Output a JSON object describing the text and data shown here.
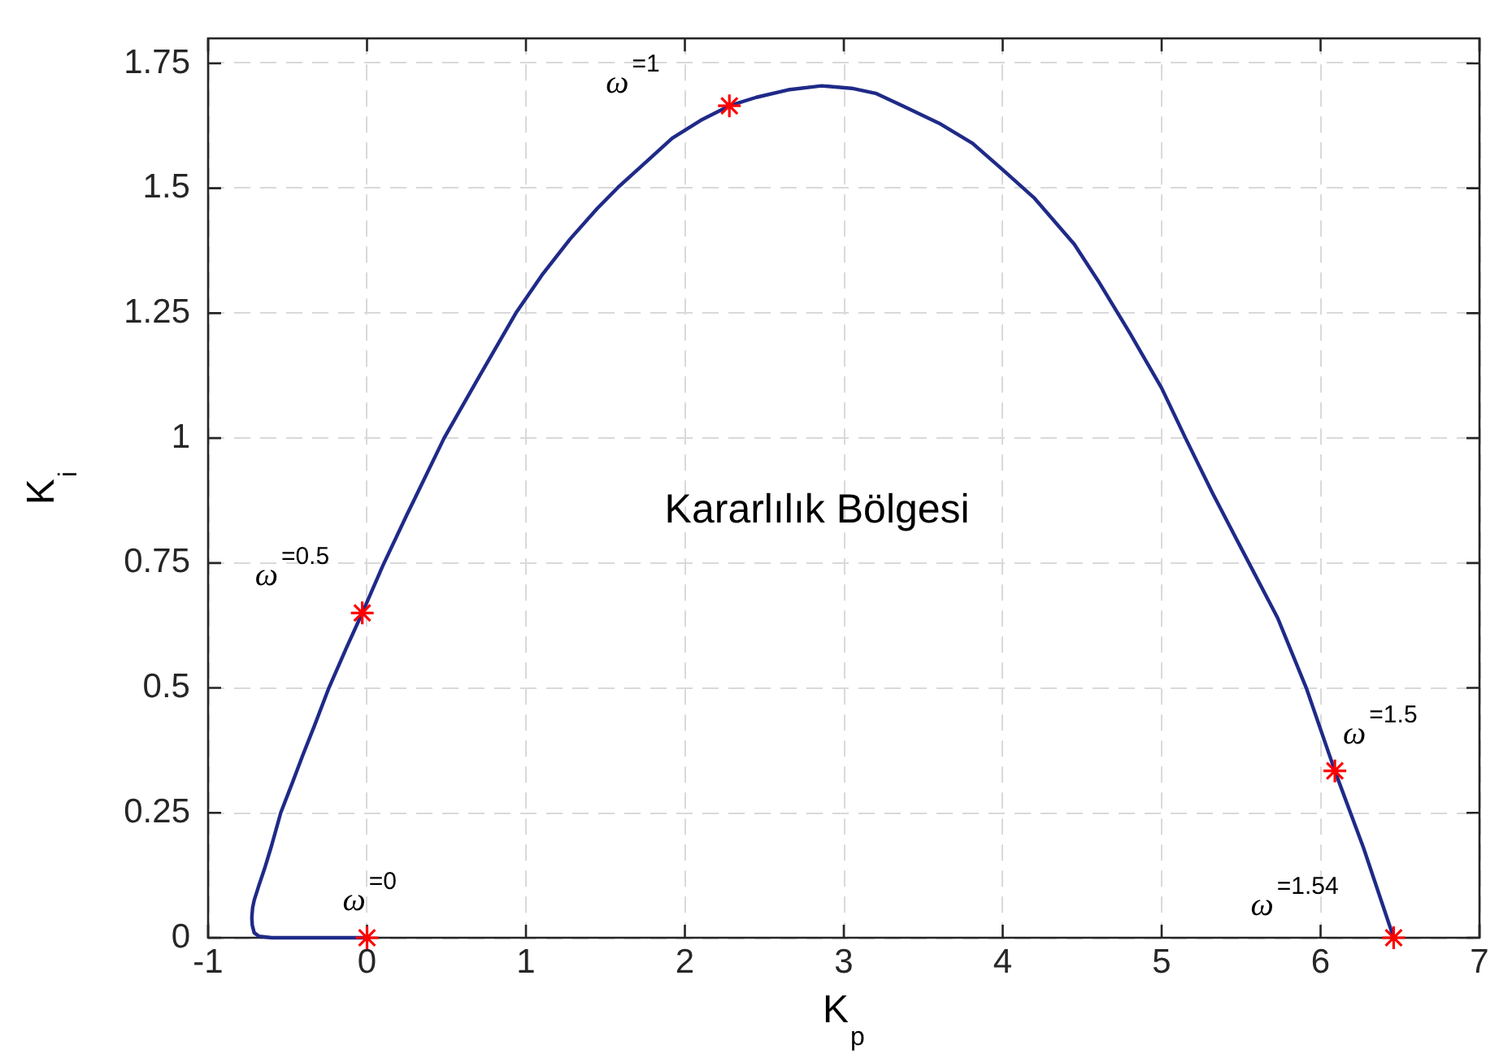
{
  "chart_data": {
    "type": "line",
    "xlabel": "K$_{p}$",
    "ylabel": "K$_{i}$",
    "annotations": [
      "Kararlılık Bölgesi",
      {
        "text": "ω$^{=0}$",
        "x": 0,
        "y": 0
      },
      {
        "text": "ω$^{=0.5}$",
        "x": -0.03,
        "y": 0.65
      },
      {
        "text": "ω$^{=1}$",
        "x": 2.28,
        "y": 1.665
      },
      {
        "text": "ω$^{=1.5}$",
        "x": 6.09,
        "y": 0.334
      },
      {
        "text": "ω$^{=1.54}$",
        "x": 6.46,
        "y": 0
      }
    ],
    "series": [
      {
        "type": "line",
        "color": "#1f2a88",
        "marker": "none",
        "x": [
          0,
          -0.3,
          -0.6,
          -0.68,
          -0.71,
          -0.722,
          -0.725,
          -0.72,
          -0.71,
          -0.68,
          -0.644,
          -0.6,
          -0.543,
          -0.47,
          -0.407,
          -0.33,
          -0.24,
          -0.13,
          -0.03,
          0.1,
          0.25,
          0.485,
          0.7,
          0.94,
          1.1,
          1.277,
          1.45,
          1.58,
          1.75,
          1.92,
          2.1,
          2.28,
          2.45,
          2.65,
          2.86,
          3.05,
          3.2,
          3.37,
          3.6,
          3.81,
          4.0,
          4.2,
          4.45,
          4.6,
          4.8,
          5.0,
          5.15,
          5.32,
          5.5,
          5.73,
          5.91,
          6.09,
          6.27,
          6.46
        ],
        "values": [
          0,
          0,
          0,
          0.003,
          0.01,
          0.025,
          0.04,
          0.06,
          0.075,
          0.105,
          0.139,
          0.185,
          0.25,
          0.31,
          0.363,
          0.425,
          0.5,
          0.58,
          0.65,
          0.745,
          0.846,
          1.0,
          1.12,
          1.252,
          1.326,
          1.398,
          1.46,
          1.502,
          1.551,
          1.6,
          1.636,
          1.665,
          1.682,
          1.697,
          1.705,
          1.7,
          1.69,
          1.665,
          1.63,
          1.59,
          1.537,
          1.48,
          1.388,
          1.315,
          1.21,
          1.1,
          1.0,
          0.89,
          0.78,
          0.64,
          0.5,
          0.334,
          0.18,
          0
        ]
      },
      {
        "type": "scatter",
        "color": "#ff0000",
        "marker": "cross",
        "x": [
          0,
          -0.03,
          2.28,
          6.09,
          6.46
        ],
        "values": [
          0,
          0.65,
          1.665,
          0.334,
          0
        ]
      }
    ],
    "xlim": [
      -1,
      7
    ],
    "ylim": [
      0,
      1.8
    ],
    "xticks": [
      -1,
      0,
      1,
      2,
      3,
      4,
      5,
      6,
      7
    ],
    "yticks": [
      0,
      0.25,
      0.5,
      0.75,
      1,
      1.25,
      1.5,
      1.75
    ],
    "grid": true
  }
}
